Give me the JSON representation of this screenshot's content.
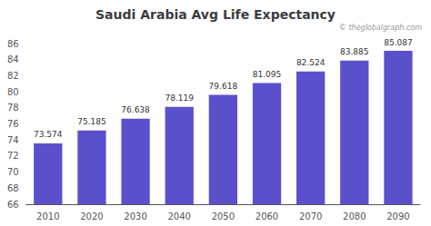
{
  "chart_data": {
    "type": "bar",
    "title": "Saudi Arabia Avg Life Expectancy",
    "annotation": "© theglobalgraph.com",
    "categories": [
      "2010",
      "2020",
      "2030",
      "2040",
      "2050",
      "2060",
      "2070",
      "2080",
      "2090"
    ],
    "values": [
      73.574,
      75.185,
      76.638,
      78.119,
      79.618,
      81.095,
      82.524,
      83.885,
      85.087
    ],
    "color": "#5b50cc",
    "ylim": [
      66,
      86
    ],
    "yticks": [
      66,
      68,
      70,
      72,
      74,
      76,
      78,
      80,
      82,
      84,
      86
    ],
    "grid": false,
    "data_labels": true
  }
}
